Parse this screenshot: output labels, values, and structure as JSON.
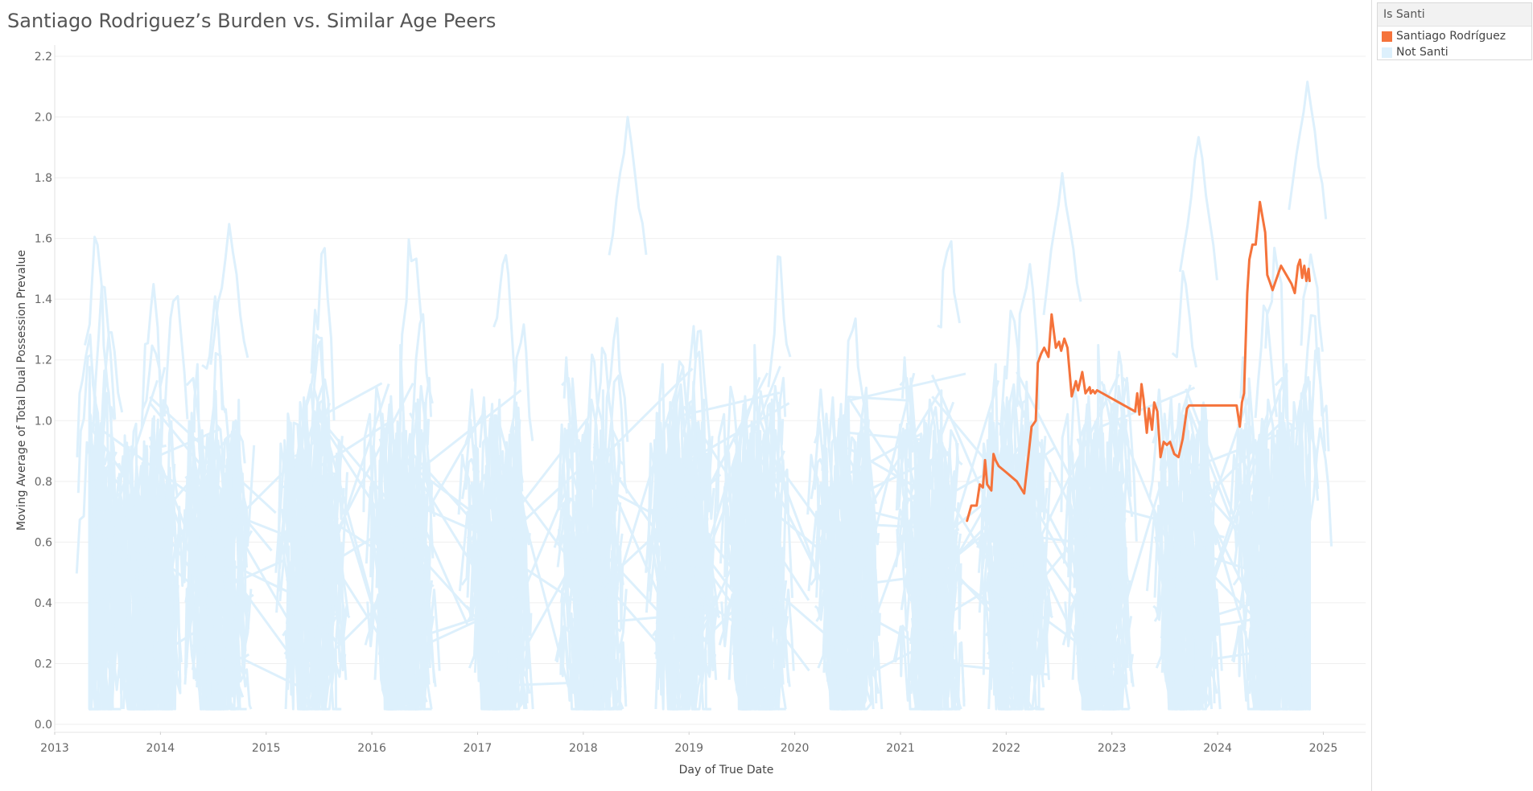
{
  "title": "Santiago Rodriguez’s Burden vs. Similar Age Peers",
  "legend": {
    "title": "Is Santi",
    "items": [
      {
        "label": "Santiago Rodríguez",
        "color": "#f5733b"
      },
      {
        "label": "Not Santi",
        "color": "#ddf0fc"
      }
    ]
  },
  "chart_data": {
    "type": "line",
    "title": "Santiago Rodriguez’s Burden vs. Similar Age Peers",
    "xlabel": "Day of True Date",
    "ylabel": "Moving Average of Total Dual Possession Prevalue",
    "xlim": [
      2013.0,
      2025.4
    ],
    "ylim": [
      0.0,
      2.2
    ],
    "x_ticks": [
      "2013",
      "2014",
      "2015",
      "2016",
      "2017",
      "2018",
      "2019",
      "2020",
      "2021",
      "2022",
      "2023",
      "2024",
      "2025"
    ],
    "y_ticks": [
      "0.0",
      "0.2",
      "0.4",
      "0.6",
      "0.8",
      "1.0",
      "1.2",
      "1.4",
      "1.6",
      "1.8",
      "2.0",
      "2.2"
    ],
    "grid": true,
    "legend_position": "top-right",
    "series": [
      {
        "name": "Santiago Rodríguez",
        "color": "#f5733b",
        "x": [
          2021.63,
          2021.67,
          2021.72,
          2021.75,
          2021.78,
          2021.8,
          2021.82,
          2021.84,
          2021.86,
          2021.88,
          2021.9,
          2021.93,
          2022.0,
          2022.1,
          2022.17,
          2022.2,
          2022.24,
          2022.28,
          2022.3,
          2022.33,
          2022.36,
          2022.4,
          2022.43,
          2022.47,
          2022.5,
          2022.52,
          2022.55,
          2022.58,
          2022.62,
          2022.66,
          2022.68,
          2022.72,
          2022.75,
          2022.79,
          2022.8,
          2022.82,
          2022.84,
          2022.86,
          2023.22,
          2023.24,
          2023.26,
          2023.28,
          2023.3,
          2023.33,
          2023.35,
          2023.38,
          2023.4,
          2023.43,
          2023.46,
          2023.49,
          2023.52,
          2023.55,
          2023.59,
          2023.63,
          2023.67,
          2023.71,
          2023.73,
          2023.75,
          2024.18,
          2024.21,
          2024.23,
          2024.25,
          2024.28,
          2024.3,
          2024.33,
          2024.36,
          2024.4,
          2024.45,
          2024.47,
          2024.49,
          2024.52,
          2024.55,
          2024.6,
          2024.65,
          2024.7,
          2024.73,
          2024.76,
          2024.78,
          2024.8,
          2024.82,
          2024.84,
          2024.86,
          2024.87
        ],
        "y": [
          0.67,
          0.72,
          0.72,
          0.79,
          0.78,
          0.87,
          0.79,
          0.78,
          0.77,
          0.89,
          0.87,
          0.85,
          0.83,
          0.8,
          0.76,
          0.85,
          0.98,
          1.0,
          1.19,
          1.22,
          1.24,
          1.21,
          1.35,
          1.24,
          1.26,
          1.23,
          1.27,
          1.24,
          1.08,
          1.13,
          1.1,
          1.16,
          1.09,
          1.11,
          1.09,
          1.1,
          1.09,
          1.1,
          1.03,
          1.09,
          1.02,
          1.12,
          1.07,
          0.96,
          1.04,
          0.97,
          1.06,
          1.03,
          0.88,
          0.93,
          0.92,
          0.93,
          0.89,
          0.88,
          0.94,
          1.04,
          1.05,
          1.05,
          1.05,
          0.98,
          1.06,
          1.09,
          1.42,
          1.53,
          1.58,
          1.58,
          1.72,
          1.62,
          1.48,
          1.46,
          1.43,
          1.46,
          1.51,
          1.48,
          1.45,
          1.42,
          1.51,
          1.53,
          1.47,
          1.51,
          1.46,
          1.5,
          1.46
        ]
      },
      {
        "name": "Not Santi",
        "color": "#ddf0fc",
        "seasonal_clusters_x": [
          2013.35,
          2013.9,
          2014.55,
          2015.45,
          2016.3,
          2017.2,
          2018.1,
          2018.95,
          2019.65,
          2020.5,
          2021.3,
          2022.1,
          2022.9,
          2023.7,
          2024.5,
          2024.85
        ],
        "y_range": [
          0.05,
          2.13
        ],
        "peaks": [
          {
            "x": 2014.65,
            "y": 1.64
          },
          {
            "x": 2018.42,
            "y": 1.99
          },
          {
            "x": 2022.53,
            "y": 1.82
          },
          {
            "x": 2023.82,
            "y": 1.93
          },
          {
            "x": 2024.85,
            "y": 2.13
          }
        ]
      }
    ]
  }
}
